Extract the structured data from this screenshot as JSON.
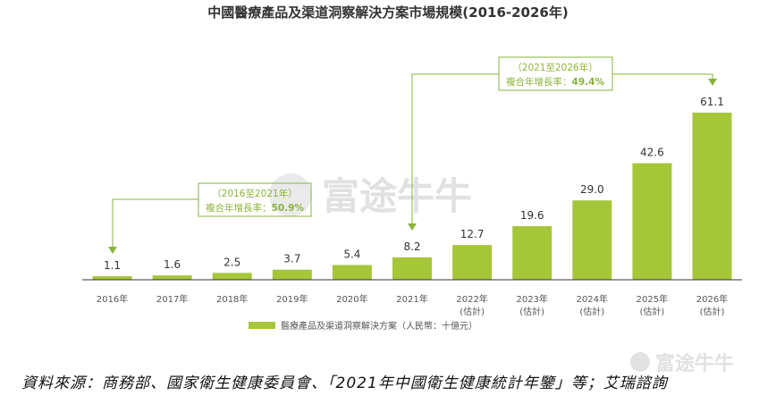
{
  "colors": {
    "bar": "#a6c63a",
    "annotation": "#8bb33a",
    "axis": "#333333"
  },
  "watermark": {
    "main": "富途牛牛",
    "corner": "富途牛牛"
  },
  "annotations": [
    {
      "line1": "（2016至2021年）",
      "line2_label": "複合年增長率：",
      "line2_value": "50.9%"
    },
    {
      "line1": "（2021至2026年）",
      "line2_label": "複合年增長率：",
      "line2_value": "49.4%"
    }
  ],
  "source_text": "資料來源：商務部、國家衛生健康委員會、「2021年中國衛生健康統計年鑒」等；艾瑞諮詢",
  "chart_data": {
    "type": "bar",
    "title": "中國醫療產品及渠道洞察解決方案市場規模(2016-2026年)",
    "categories": [
      "2016年",
      "2017年",
      "2018年",
      "2019年",
      "2020年",
      "2021年",
      "2022年",
      "2023年",
      "2024年",
      "2025年",
      "2026年"
    ],
    "category_notes": [
      "",
      "",
      "",
      "",
      "",
      "",
      "(估計)",
      "(估計)",
      "(估計)",
      "(估計)",
      "(估計)"
    ],
    "series": [
      {
        "name": "醫療產品及渠道洞察解決方案（人民幣：十億元）",
        "values": [
          1.1,
          1.6,
          2.5,
          3.7,
          5.4,
          8.2,
          12.7,
          19.6,
          29.0,
          42.6,
          61.1
        ]
      }
    ],
    "value_labels": [
      "1.1",
      "1.6",
      "2.5",
      "3.7",
      "5.4",
      "8.2",
      "12.7",
      "19.6",
      "29.0",
      "42.6",
      "61.1"
    ],
    "ylim": [
      0,
      61.1
    ],
    "grid": false,
    "legend": "bottom"
  }
}
